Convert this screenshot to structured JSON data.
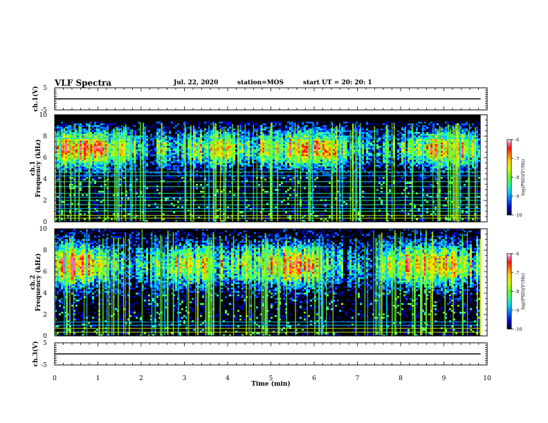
{
  "header": {
    "title": "VLF Spectra",
    "date": "Jul. 22, 2020",
    "station": "station=MOS",
    "start": "start UT =  20: 20: 1"
  },
  "colors": {
    "spectrogram_background": "#000000",
    "colormap": [
      "#000033",
      "#0000c8",
      "#0066ff",
      "#00ccff",
      "#33ff99",
      "#66ff33",
      "#ccff00",
      "#ffd700",
      "#ff7f00",
      "#ff1a00",
      "#ff66aa",
      "#ffffff"
    ]
  },
  "chart_data": [
    {
      "type": "line",
      "panel": "ch1-waveform",
      "ylabel": "ch.1(V)",
      "ylim": [
        -5,
        5
      ],
      "yticks": [
        5,
        -5
      ],
      "xlim": [
        0,
        10
      ],
      "series": [
        {
          "x": [
            0,
            9.85
          ],
          "y": [
            0,
            0
          ]
        }
      ]
    },
    {
      "type": "heatmap",
      "panel": "ch1-spectrogram",
      "ylabel_channel": "ch.1",
      "ylabel": "Frequency (kHz)",
      "ylim": [
        0,
        10
      ],
      "yticks": [
        0,
        2,
        4,
        6,
        8,
        10
      ],
      "xlim": [
        0,
        10
      ],
      "data_end_min": 9.85,
      "colorbar": {
        "label": "log(PSD)(V²/Hz)",
        "range": [
          -10,
          -6
        ],
        "ticks": [
          -6,
          -7,
          -8,
          -9,
          -10
        ]
      },
      "tones_khz": [
        0.35,
        0.6,
        1.0,
        1.25,
        1.6,
        2.0,
        2.3,
        2.65,
        3.3,
        3.75,
        4.3,
        4.65,
        7.8
      ]
    },
    {
      "type": "heatmap",
      "panel": "ch2-spectrogram",
      "ylabel_channel": "ch.2",
      "ylabel": "Frequency (kHz)",
      "ylim": [
        0,
        10
      ],
      "yticks": [
        0,
        2,
        4,
        6,
        8,
        10
      ],
      "xlim": [
        0,
        10
      ],
      "data_end_min": 9.85,
      "colorbar": {
        "label": "log(PSD)(V²/Hz)",
        "range": [
          -10,
          -6
        ],
        "ticks": [
          -6,
          -7,
          -8,
          -9,
          -10
        ]
      },
      "tones_khz": [
        0.35,
        0.7,
        1.0,
        1.3
      ]
    },
    {
      "type": "line",
      "panel": "ch3-waveform",
      "ylabel": "ch.3(V)",
      "ylim": [
        -5,
        5
      ],
      "yticks": [
        5,
        -5
      ],
      "xlim": [
        0,
        10
      ],
      "xlabel": "Time (min)",
      "xticks": [
        0,
        1,
        2,
        3,
        4,
        5,
        6,
        7,
        8,
        9,
        10
      ],
      "series": [
        {
          "x": [
            0,
            9.85
          ],
          "y": [
            0,
            0
          ]
        }
      ]
    }
  ]
}
